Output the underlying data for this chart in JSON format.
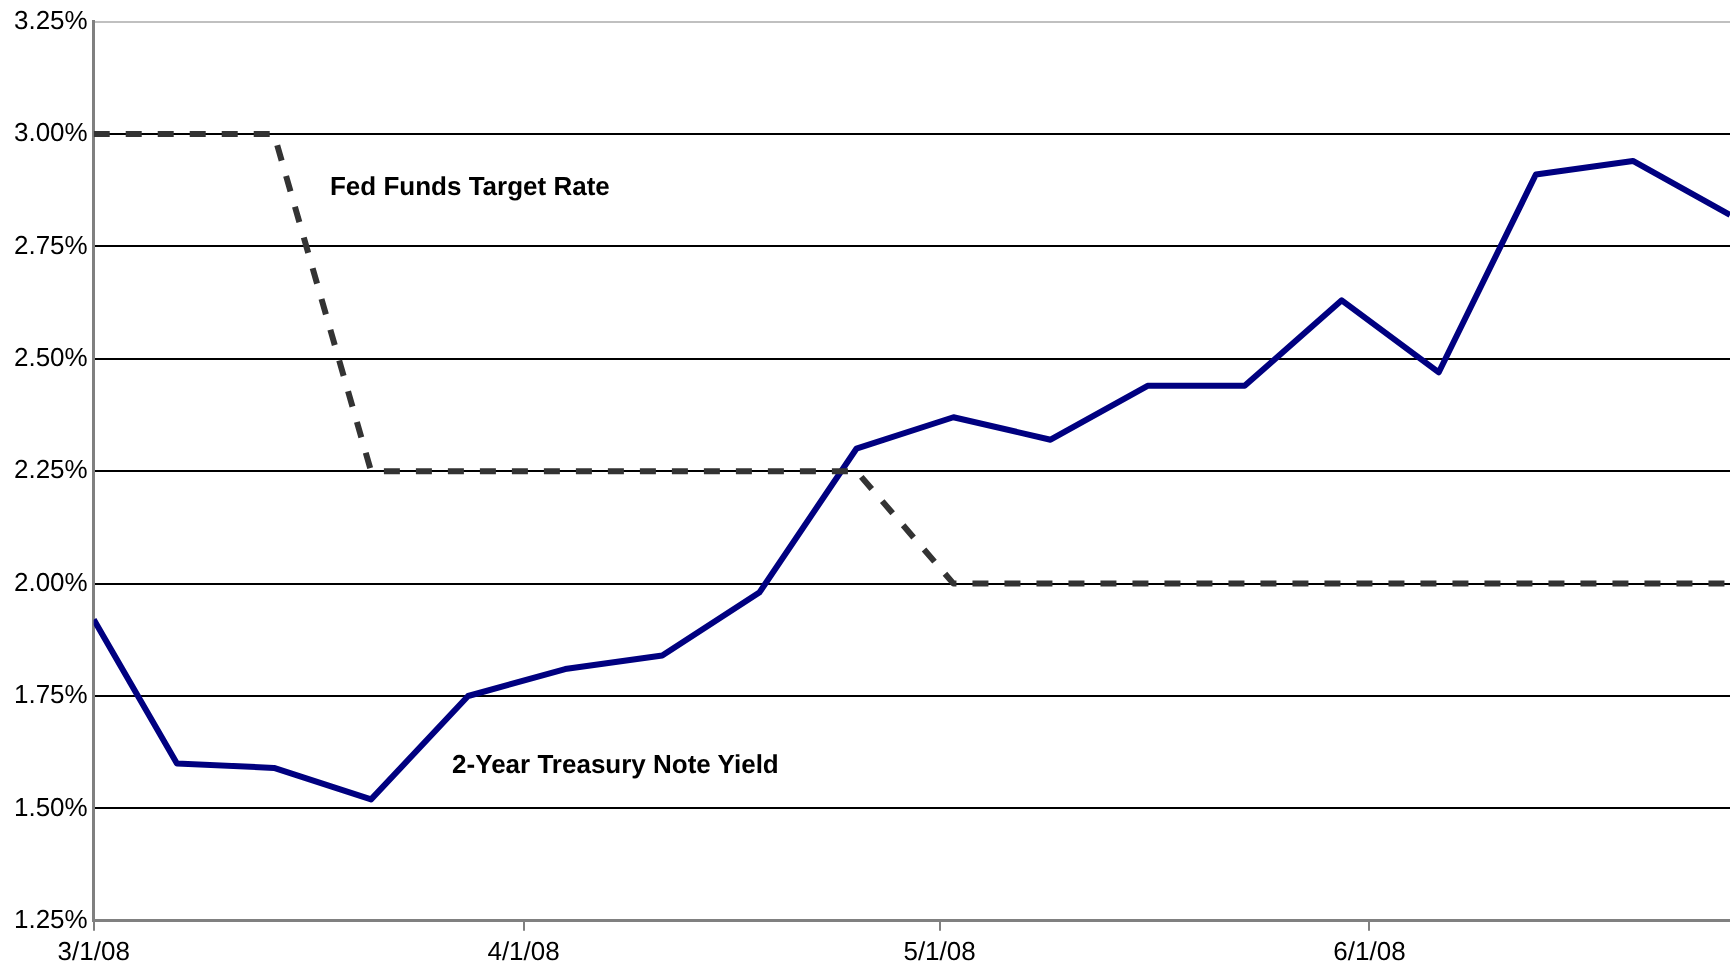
{
  "chart_data": {
    "type": "line",
    "x": [
      "2008-03-01",
      "2008-03-07",
      "2008-03-14",
      "2008-03-21",
      "2008-03-28",
      "2008-04-04",
      "2008-04-11",
      "2008-04-18",
      "2008-04-25",
      "2008-05-02",
      "2008-05-09",
      "2008-05-16",
      "2008-05-23",
      "2008-05-30",
      "2008-06-06",
      "2008-06-13",
      "2008-06-20",
      "2008-06-27"
    ],
    "series": [
      {
        "name": "Fed Funds Target Rate",
        "color": "#333333",
        "line_style": "dashed",
        "values": [
          3.0,
          3.0,
          3.0,
          2.25,
          2.25,
          2.25,
          2.25,
          2.25,
          2.25,
          2.0,
          2.0,
          2.0,
          2.0,
          2.0,
          2.0,
          2.0,
          2.0,
          2.0
        ]
      },
      {
        "name": "2-Year Treasury Note Yield",
        "color": "#000080",
        "line_style": "solid",
        "values": [
          1.92,
          1.6,
          1.59,
          1.52,
          1.75,
          1.81,
          1.84,
          1.98,
          2.3,
          2.37,
          2.32,
          2.44,
          2.44,
          2.63,
          2.47,
          2.91,
          2.94,
          2.82
        ]
      }
    ],
    "xlim": [
      "2008-03-01",
      "2008-06-27"
    ],
    "xticks": [
      {
        "value": "2008-03-01",
        "label": "3/1/08"
      },
      {
        "value": "2008-04-01",
        "label": "4/1/08"
      },
      {
        "value": "2008-05-01",
        "label": "5/1/08"
      },
      {
        "value": "2008-06-01",
        "label": "6/1/08"
      }
    ],
    "ylim": [
      1.25,
      3.25
    ],
    "yticks": [
      {
        "value": 1.25,
        "label": "1.25%"
      },
      {
        "value": 1.5,
        "label": "1.50%"
      },
      {
        "value": 1.75,
        "label": "1.75%"
      },
      {
        "value": 2.0,
        "label": "2.00%"
      },
      {
        "value": 2.25,
        "label": "2.25%"
      },
      {
        "value": 2.5,
        "label": "2.50%"
      },
      {
        "value": 2.75,
        "label": "2.75%"
      },
      {
        "value": 3.0,
        "label": "3.00%"
      },
      {
        "value": 3.25,
        "label": "3.25%"
      }
    ],
    "grid": "y",
    "legend": false,
    "marker": "none"
  }
}
